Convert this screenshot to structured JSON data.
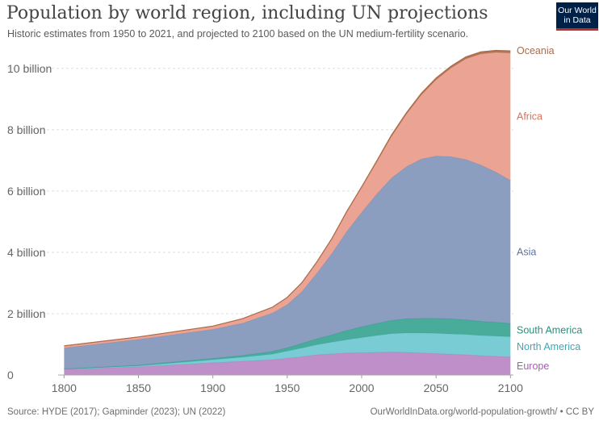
{
  "header": {
    "title": "Population by world region, including UN projections",
    "subtitle": "Historic estimates from 1950 to 2021, and projected to 2100 based on the UN medium-fertility scenario."
  },
  "logo": {
    "line1": "Our World",
    "line2": "in Data",
    "bg_color": "#002147",
    "accent_color": "#b92f2f"
  },
  "footer": {
    "source": "Source: HYDE (2017); Gapminder (2023); UN (2022)",
    "url": "OurWorldInData.org/world-population-growth/ • CC BY"
  },
  "chart_data": {
    "type": "area",
    "stacked": true,
    "x": [
      1800,
      1850,
      1900,
      1920,
      1940,
      1950,
      1960,
      1970,
      1980,
      1990,
      2000,
      2010,
      2020,
      2030,
      2040,
      2050,
      2060,
      2070,
      2080,
      2090,
      2100
    ],
    "xlim": [
      1796,
      2102
    ],
    "ylim": [
      0,
      10.6
    ],
    "x_ticks": [
      1800,
      1850,
      1900,
      1950,
      2000,
      2050,
      2100
    ],
    "y_ticks": [
      0,
      2,
      4,
      6,
      8,
      10
    ],
    "y_tick_labels": [
      "0",
      "2 billion",
      "4 billion",
      "6 billion",
      "8 billion",
      "10 billion"
    ],
    "grid": "horizontal dashed",
    "legend_placement": "labels at right end of series",
    "series": [
      {
        "name": "Europe",
        "color": "#b986c4",
        "values": [
          0.18,
          0.27,
          0.4,
          0.45,
          0.5,
          0.55,
          0.6,
          0.66,
          0.69,
          0.72,
          0.73,
          0.74,
          0.75,
          0.74,
          0.72,
          0.7,
          0.68,
          0.66,
          0.63,
          0.61,
          0.59
        ]
      },
      {
        "name": "North America",
        "color": "#6fc8d0",
        "values": [
          0.01,
          0.03,
          0.1,
          0.13,
          0.18,
          0.23,
          0.28,
          0.33,
          0.38,
          0.43,
          0.49,
          0.55,
          0.6,
          0.63,
          0.65,
          0.66,
          0.66,
          0.66,
          0.66,
          0.66,
          0.66
        ]
      },
      {
        "name": "South America",
        "color": "#3aa592",
        "values": [
          0.01,
          0.02,
          0.04,
          0.06,
          0.09,
          0.11,
          0.15,
          0.19,
          0.24,
          0.3,
          0.35,
          0.39,
          0.43,
          0.46,
          0.48,
          0.49,
          0.49,
          0.48,
          0.46,
          0.45,
          0.43
        ]
      },
      {
        "name": "Asia",
        "color": "#8196bb",
        "values": [
          0.68,
          0.84,
          0.95,
          1.05,
          1.25,
          1.4,
          1.7,
          2.14,
          2.65,
          3.23,
          3.73,
          4.21,
          4.64,
          4.96,
          5.19,
          5.29,
          5.29,
          5.23,
          5.1,
          4.9,
          4.67
        ]
      },
      {
        "name": "Africa",
        "color": "#e99b8b",
        "values": [
          0.07,
          0.08,
          0.1,
          0.14,
          0.18,
          0.23,
          0.28,
          0.36,
          0.47,
          0.63,
          0.81,
          1.04,
          1.36,
          1.71,
          2.09,
          2.49,
          2.89,
          3.28,
          3.62,
          3.9,
          4.15
        ]
      },
      {
        "name": "Oceania",
        "color": "#a86d4a",
        "values": [
          0.002,
          0.002,
          0.006,
          0.009,
          0.011,
          0.013,
          0.016,
          0.02,
          0.023,
          0.027,
          0.031,
          0.037,
          0.044,
          0.049,
          0.053,
          0.057,
          0.061,
          0.064,
          0.066,
          0.068,
          0.07
        ]
      }
    ]
  }
}
